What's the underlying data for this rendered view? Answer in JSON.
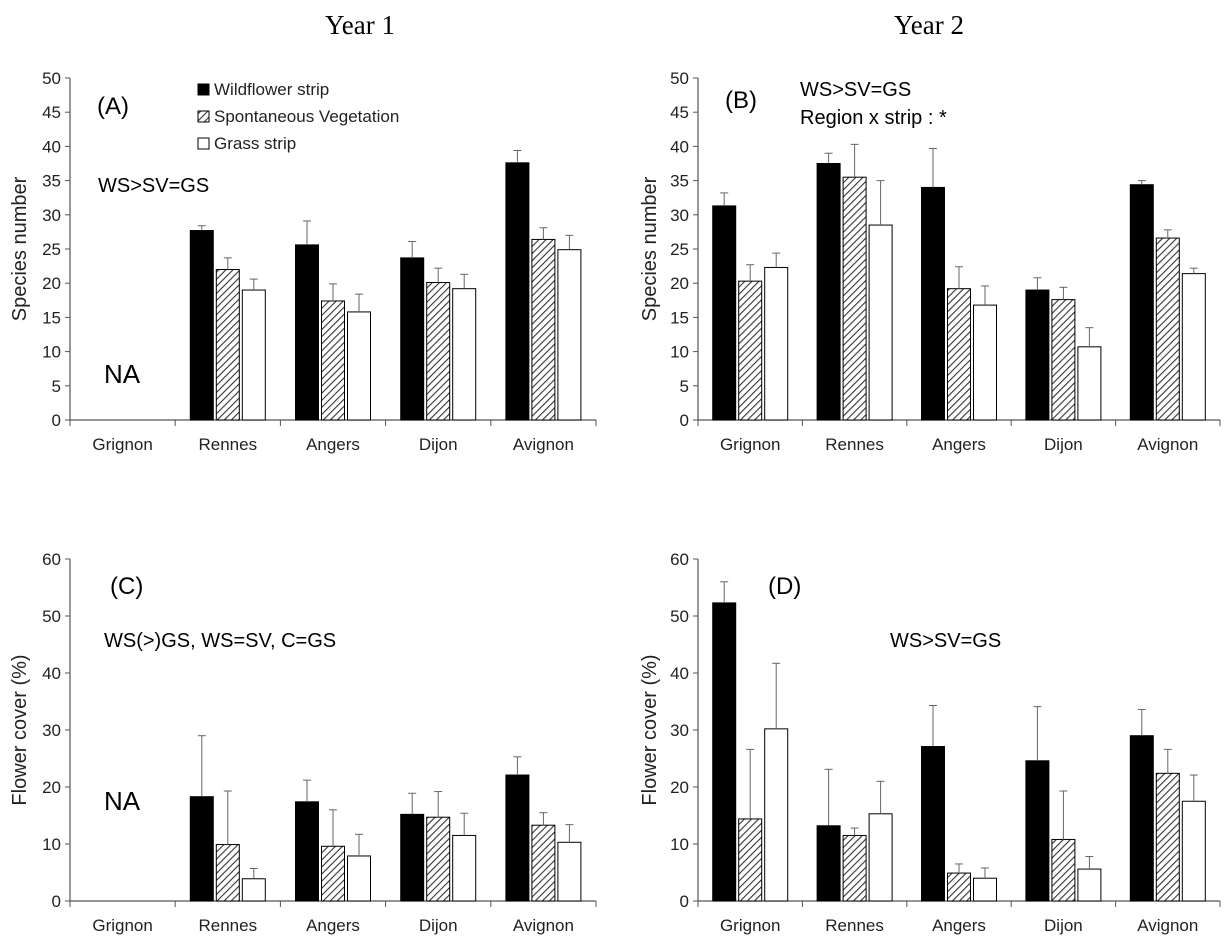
{
  "figure": {
    "col_titles": [
      "Year 1",
      "Year 2"
    ],
    "legend": [
      {
        "label": "Wildflower strip",
        "fill": "solid",
        "color": "#000000"
      },
      {
        "label": "Spontaneous Vegetation",
        "fill": "hatch",
        "color": "#555555"
      },
      {
        "label": "Grass strip",
        "fill": "white",
        "color": "#ffffff"
      }
    ]
  },
  "chart_data": [
    {
      "type": "bar",
      "panel": "(A)",
      "ylabel": "Species number",
      "ylim": [
        0,
        50
      ],
      "yticks": [
        0,
        5,
        10,
        15,
        20,
        25,
        30,
        35,
        40,
        45,
        50
      ],
      "categories": [
        "Grignon",
        "Rennes",
        "Angers",
        "Dijon",
        "Avignon"
      ],
      "series": [
        {
          "name": "Wildflower strip",
          "values": [
            null,
            27.7,
            25.6,
            23.7,
            37.6
          ],
          "errors": [
            null,
            0.7,
            3.5,
            2.4,
            1.8
          ]
        },
        {
          "name": "Spontaneous Vegetation",
          "values": [
            null,
            22.0,
            17.4,
            20.1,
            26.4
          ],
          "errors": [
            null,
            1.7,
            2.5,
            2.1,
            1.7
          ]
        },
        {
          "name": "Grass strip",
          "values": [
            null,
            19.0,
            15.8,
            19.2,
            24.9
          ],
          "errors": [
            null,
            1.6,
            2.6,
            2.1,
            2.1
          ]
        }
      ],
      "annotations": [
        "WS>SV=GS"
      ],
      "na_label": "NA",
      "legend": true
    },
    {
      "type": "bar",
      "panel": "(B)",
      "ylabel": "Species number",
      "ylim": [
        0,
        50
      ],
      "yticks": [
        0,
        5,
        10,
        15,
        20,
        25,
        30,
        35,
        40,
        45,
        50
      ],
      "categories": [
        "Grignon",
        "Rennes",
        "Angers",
        "Dijon",
        "Avignon"
      ],
      "series": [
        {
          "name": "Wildflower strip",
          "values": [
            31.3,
            37.5,
            34.0,
            19.0,
            34.4
          ],
          "errors": [
            1.9,
            1.5,
            5.7,
            1.8,
            0.6
          ]
        },
        {
          "name": "Spontaneous Vegetation",
          "values": [
            20.3,
            35.5,
            19.2,
            17.6,
            26.6
          ],
          "errors": [
            2.4,
            4.8,
            3.2,
            1.8,
            1.2
          ]
        },
        {
          "name": "Grass strip",
          "values": [
            22.3,
            28.5,
            16.8,
            10.7,
            21.4
          ],
          "errors": [
            2.1,
            6.5,
            2.8,
            2.8,
            0.8
          ]
        }
      ],
      "annotations": [
        "WS>SV=GS",
        "Region x strip : *"
      ],
      "na_label": "",
      "legend": false
    },
    {
      "type": "bar",
      "panel": "(C)",
      "ylabel": "Flower cover (%)",
      "ylim": [
        0,
        60
      ],
      "yticks": [
        0,
        10,
        20,
        30,
        40,
        50,
        60
      ],
      "categories": [
        "Grignon",
        "Rennes",
        "Angers",
        "Dijon",
        "Avignon"
      ],
      "series": [
        {
          "name": "Wildflower strip",
          "values": [
            null,
            18.3,
            17.4,
            15.2,
            22.1
          ],
          "errors": [
            null,
            10.7,
            3.8,
            3.7,
            3.2
          ]
        },
        {
          "name": "Spontaneous Vegetation",
          "values": [
            null,
            9.9,
            9.6,
            14.7,
            13.3
          ],
          "errors": [
            null,
            9.4,
            6.4,
            4.5,
            2.2
          ]
        },
        {
          "name": "Grass strip",
          "values": [
            null,
            3.9,
            7.9,
            11.5,
            10.3
          ],
          "errors": [
            null,
            1.8,
            3.8,
            3.9,
            3.1
          ]
        }
      ],
      "annotations": [
        "WS(>)GS, WS=SV, C=GS"
      ],
      "na_label": "NA",
      "legend": false
    },
    {
      "type": "bar",
      "panel": "(D)",
      "ylabel": "Flower cover (%)",
      "ylim": [
        0,
        60
      ],
      "yticks": [
        0,
        10,
        20,
        30,
        40,
        50,
        60
      ],
      "categories": [
        "Grignon",
        "Rennes",
        "Angers",
        "Dijon",
        "Avignon"
      ],
      "series": [
        {
          "name": "Wildflower strip",
          "values": [
            52.3,
            13.2,
            27.1,
            24.6,
            29.0
          ],
          "errors": [
            3.7,
            9.9,
            7.2,
            9.5,
            4.6
          ]
        },
        {
          "name": "Spontaneous Vegetation",
          "values": [
            14.4,
            11.5,
            4.9,
            10.8,
            22.4
          ],
          "errors": [
            12.2,
            1.3,
            1.6,
            8.5,
            4.2
          ]
        },
        {
          "name": "Grass strip",
          "values": [
            30.2,
            15.3,
            4.0,
            5.6,
            17.5
          ],
          "errors": [
            11.5,
            5.7,
            1.8,
            2.2,
            4.6
          ]
        }
      ],
      "annotations": [
        "WS>SV=GS"
      ],
      "na_label": "",
      "legend": false
    }
  ]
}
